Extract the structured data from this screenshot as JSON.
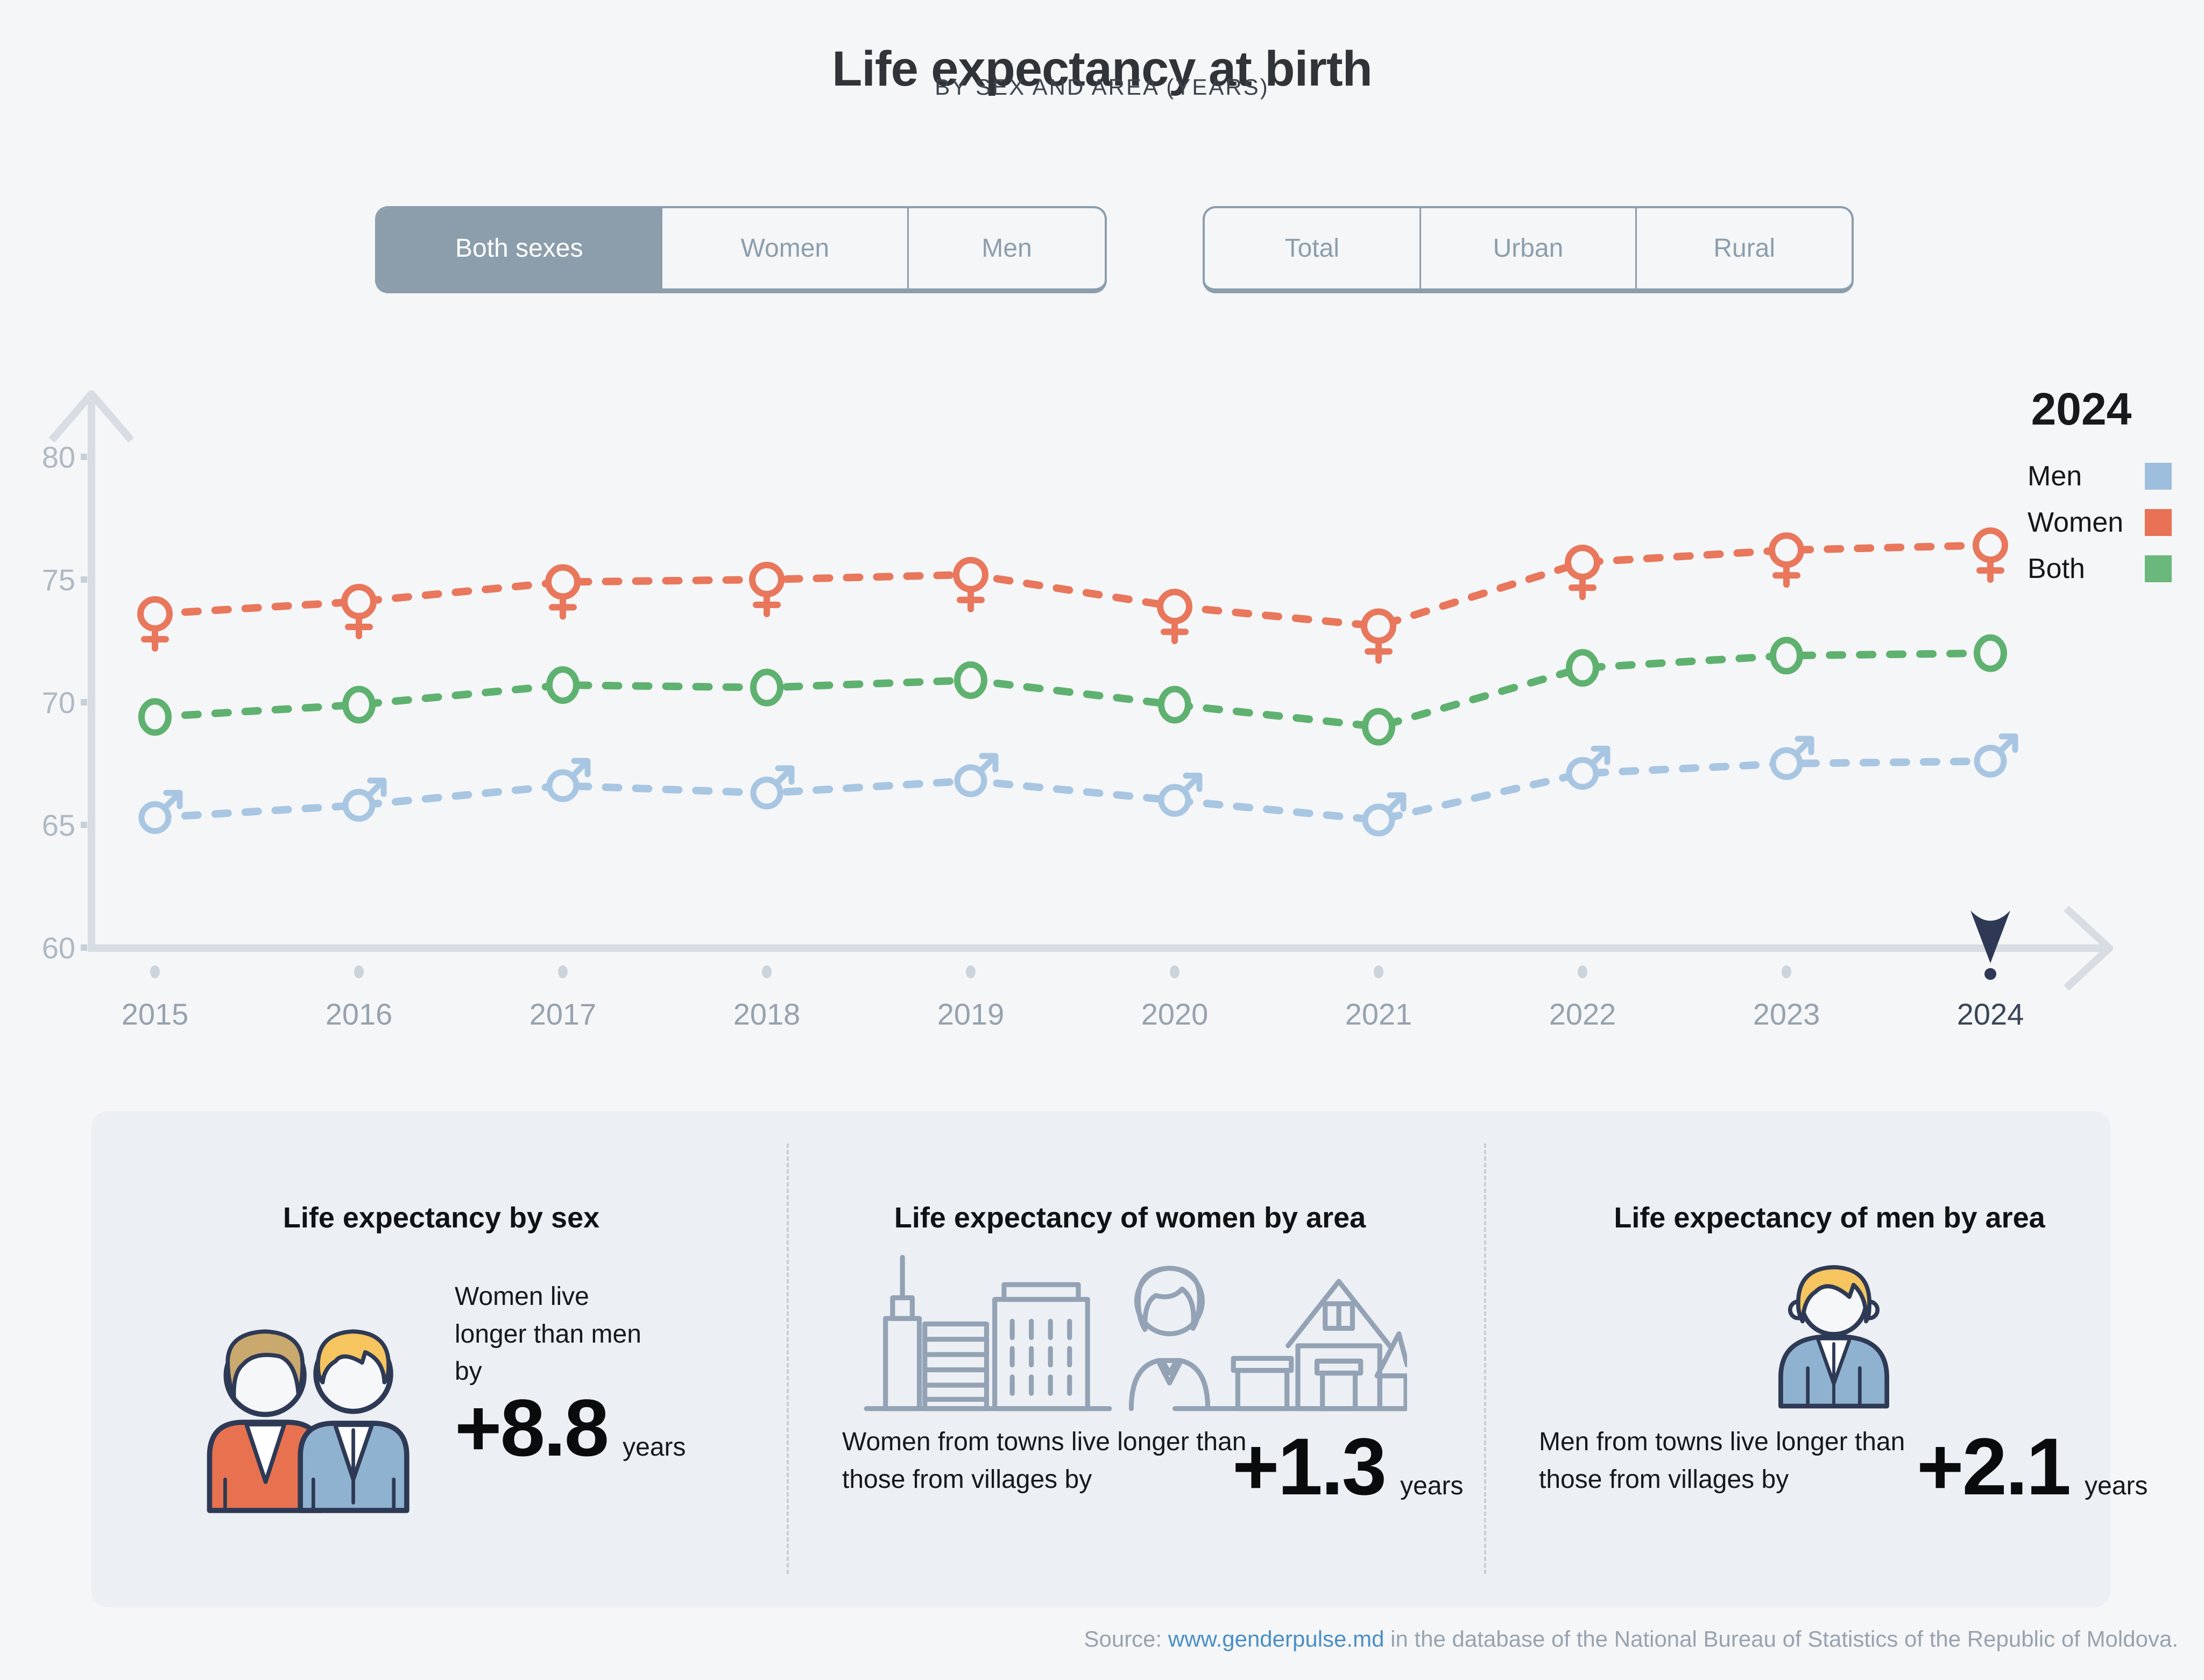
{
  "page": {
    "title": "Life expectancy at birth",
    "subtitle": "BY SEX AND AREA (YEARS)"
  },
  "filters": {
    "sex": {
      "options": [
        "Both sexes",
        "Women",
        "Men"
      ],
      "selected": "Both sexes"
    },
    "area": {
      "options": [
        "Total",
        "Urban",
        "Rural"
      ],
      "selected": ""
    }
  },
  "legend": {
    "title": "2024",
    "items": [
      {
        "label": "Men",
        "color": "#9EBEDD"
      },
      {
        "label": "Women",
        "color": "#E87156"
      },
      {
        "label": "Both",
        "color": "#6BB87D"
      }
    ]
  },
  "chart_data": {
    "type": "line",
    "title": "Life expectancy at birth",
    "subtitle": "BY SEX AND AREA (YEARS)",
    "x": [
      2015,
      2016,
      2017,
      2018,
      2019,
      2020,
      2021,
      2022,
      2023,
      2024
    ],
    "series": [
      {
        "name": "Women",
        "marker": "female",
        "color": "#E8775C",
        "values": [
          73.6,
          74.1,
          74.9,
          75.0,
          75.2,
          73.9,
          73.1,
          75.7,
          76.2,
          76.4
        ]
      },
      {
        "name": "Both",
        "marker": "circle",
        "color": "#5FB170",
        "values": [
          69.4,
          69.9,
          70.7,
          70.6,
          70.9,
          69.9,
          69.0,
          71.4,
          71.9,
          72.0
        ]
      },
      {
        "name": "Men",
        "marker": "male",
        "color": "#A8C6E2",
        "values": [
          65.3,
          65.8,
          66.6,
          66.3,
          66.8,
          66.0,
          65.2,
          67.1,
          67.5,
          67.6
        ]
      }
    ],
    "xlabel": "",
    "ylabel": "",
    "ylim": [
      60,
      82
    ],
    "yticks": [
      80,
      75,
      70,
      65,
      60
    ],
    "grid": false,
    "line_style": "dashed",
    "legend_position": "top-right",
    "selected_x": 2024
  },
  "cards": [
    {
      "title": "Life expectancy by sex",
      "icon": "woman-and-man-icon",
      "text": "Women live longer than men by",
      "value": "+8.8",
      "unit": "years"
    },
    {
      "title": "Life expectancy of women by area",
      "icon": "city-woman-house-icon",
      "text": "Women from towns live longer than those from villages by",
      "value": "+1.3",
      "unit": "years"
    },
    {
      "title": "Life expectancy of men by area",
      "icon": "man-icon",
      "text": "Men from towns live longer than those from villages by",
      "value": "+2.1",
      "unit": "years"
    }
  ],
  "source": {
    "label": "Source: ",
    "link": "www.genderpulse.md",
    "rest": " in the database of the National Bureau of Statistics of the Republic of Moldova."
  }
}
